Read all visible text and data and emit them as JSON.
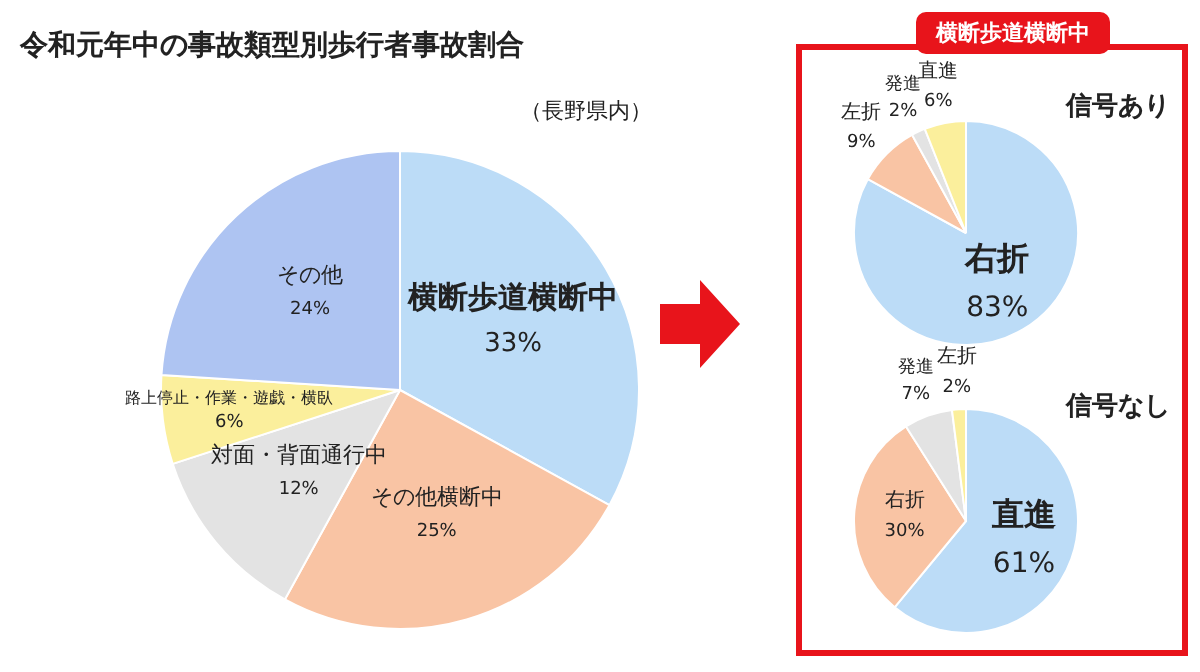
{
  "chart_data": [
    {
      "type": "pie",
      "title": "令和元年中の事故類型別歩行者事故割合",
      "subtitle": "（長野県内）",
      "categories": [
        "横断歩道横断中",
        "その他横断中",
        "対面・背面通行中",
        "路上停止・作業・遊戯・横臥",
        "その他"
      ],
      "values": [
        33,
        25,
        12,
        6,
        24
      ],
      "value_labels": [
        "33%",
        "25%",
        "12%",
        "6%",
        "24%"
      ],
      "colors": [
        "#bcdcf7",
        "#f9c4a4",
        "#e3e3e3",
        "#fbef9c",
        "#aec4f2"
      ],
      "legend": false
    },
    {
      "type": "pie",
      "title": "横断歩道横断中",
      "subtitle": "信号あり",
      "categories": [
        "右折",
        "左折",
        "発進",
        "直進"
      ],
      "values": [
        83,
        9,
        2,
        6
      ],
      "value_labels": [
        "83%",
        "9%",
        "2%",
        "6%"
      ],
      "colors": [
        "#bcdcf7",
        "#f9c4a4",
        "#e3e3e3",
        "#fbef9c"
      ],
      "legend": false
    },
    {
      "type": "pie",
      "title": "信号なし",
      "categories": [
        "直進",
        "右折",
        "発進",
        "左折"
      ],
      "values": [
        61,
        30,
        7,
        2
      ],
      "value_labels": [
        "61%",
        "30%",
        "7%",
        "2%"
      ],
      "colors": [
        "#bcdcf7",
        "#f9c4a4",
        "#e3e3e3",
        "#fbef9c"
      ],
      "legend": false
    }
  ]
}
